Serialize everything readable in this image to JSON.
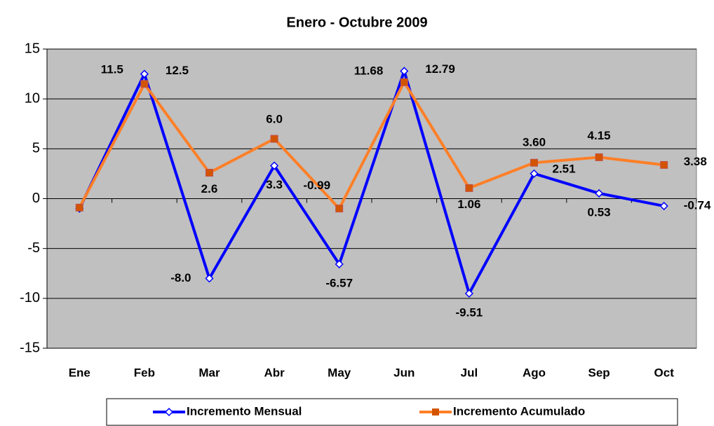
{
  "chart_data": {
    "type": "line",
    "title": "Enero - Octubre 2009",
    "categories": [
      "Ene",
      "Feb",
      "Mar",
      "Abr",
      "May",
      "Jun",
      "Jul",
      "Ago",
      "Sep",
      "Oct"
    ],
    "series": [
      {
        "name": "Incremento Mensual",
        "color": "#0000ff",
        "marker": "diamond",
        "values": [
          -1.0,
          12.5,
          -8.0,
          3.3,
          -6.57,
          12.79,
          -9.51,
          2.51,
          0.53,
          -0.74
        ],
        "value_labels": [
          null,
          "12.5",
          "-8.0",
          "3.3",
          "-6.57",
          "12.79",
          "-9.51",
          "2.51",
          "0.53",
          "-0.74"
        ]
      },
      {
        "name": "Incremento Acumulado",
        "color": "#ff7f27",
        "marker": "square",
        "values": [
          -0.9,
          11.5,
          2.6,
          6.0,
          -0.99,
          11.68,
          1.06,
          3.6,
          4.15,
          3.38
        ],
        "value_labels": [
          null,
          "11.5",
          "2.6",
          "6.0",
          "-0.99",
          "11.68",
          "1.06",
          "3.60",
          "4.15",
          "3.38"
        ]
      }
    ],
    "ylim": [
      -15,
      15
    ],
    "yticks": [
      -15,
      -10,
      -5,
      0,
      5,
      10,
      15
    ],
    "grid": true,
    "legend": "bottom"
  }
}
